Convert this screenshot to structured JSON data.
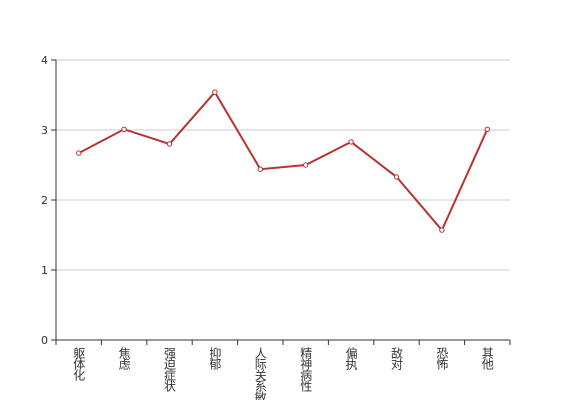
{
  "chart_data": {
    "type": "line",
    "categories": [
      "躯体化",
      "焦虑",
      "强迫症状",
      "抑郁",
      "人际关系敏感",
      "精神病性",
      "偏执",
      "敌对",
      "恐怖",
      "其他"
    ],
    "series": [
      {
        "color": "#b83232",
        "values": [
          2.67,
          3.01,
          2.8,
          3.54,
          2.44,
          2.5,
          2.83,
          2.33,
          1.57,
          3.01
        ]
      }
    ],
    "ylim": [
      0,
      4
    ],
    "yticks": [
      0,
      1,
      2,
      3,
      4
    ],
    "grid": true
  }
}
